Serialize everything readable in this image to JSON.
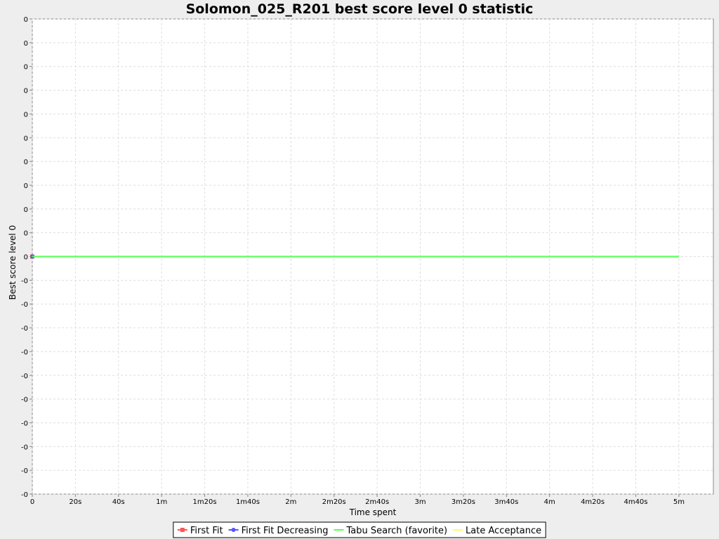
{
  "chart_data": {
    "type": "line",
    "title": "Solomon_025_R201 best score level 0 statistic",
    "xlabel": "Time spent",
    "ylabel": "Best score level 0",
    "x_unit": "seconds",
    "xlim": [
      0,
      316
    ],
    "x_ticks": [
      {
        "value": 0,
        "label": "0"
      },
      {
        "value": 20,
        "label": "20s"
      },
      {
        "value": 40,
        "label": "40s"
      },
      {
        "value": 60,
        "label": "1m"
      },
      {
        "value": 80,
        "label": "1m20s"
      },
      {
        "value": 100,
        "label": "1m40s"
      },
      {
        "value": 120,
        "label": "2m"
      },
      {
        "value": 140,
        "label": "2m20s"
      },
      {
        "value": 160,
        "label": "2m40s"
      },
      {
        "value": 180,
        "label": "3m"
      },
      {
        "value": 200,
        "label": "3m20s"
      },
      {
        "value": 220,
        "label": "3m40s"
      },
      {
        "value": 240,
        "label": "4m"
      },
      {
        "value": 260,
        "label": "4m20s"
      },
      {
        "value": 280,
        "label": "4m40s"
      },
      {
        "value": 300,
        "label": "5m"
      }
    ],
    "ylim": [
      -0.001,
      0.001
    ],
    "y_ticks": [
      {
        "value": 0.001,
        "label": "0"
      },
      {
        "value": 0.0009,
        "label": "0"
      },
      {
        "value": 0.0008,
        "label": "0"
      },
      {
        "value": 0.0007,
        "label": "0"
      },
      {
        "value": 0.0006,
        "label": "0"
      },
      {
        "value": 0.0005,
        "label": "0"
      },
      {
        "value": 0.0004,
        "label": "0"
      },
      {
        "value": 0.0003,
        "label": "0"
      },
      {
        "value": 0.0002,
        "label": "0"
      },
      {
        "value": 0.0001,
        "label": "0"
      },
      {
        "value": 0.0,
        "label": "0"
      },
      {
        "value": -0.0001,
        "label": "-0"
      },
      {
        "value": -0.0002,
        "label": "-0"
      },
      {
        "value": -0.0003,
        "label": "-0"
      },
      {
        "value": -0.0004,
        "label": "-0"
      },
      {
        "value": -0.0005,
        "label": "-0"
      },
      {
        "value": -0.0006,
        "label": "-0"
      },
      {
        "value": -0.0007,
        "label": "-0"
      },
      {
        "value": -0.0008,
        "label": "-0"
      },
      {
        "value": -0.0009,
        "label": "-0"
      },
      {
        "value": -0.001,
        "label": "-0"
      }
    ],
    "grid": true,
    "legend_position": "bottom",
    "series": [
      {
        "name": "First Fit",
        "color": "#ff5555",
        "marker": "square",
        "x": [
          0
        ],
        "y": [
          0
        ]
      },
      {
        "name": "First Fit Decreasing",
        "color": "#5555ff",
        "marker": "circle",
        "x": [
          0
        ],
        "y": [
          0
        ]
      },
      {
        "name": "Tabu Search (favorite)",
        "color": "#55ff55",
        "marker": "none",
        "x": [
          0,
          300
        ],
        "y": [
          0,
          0
        ]
      },
      {
        "name": "Late Acceptance",
        "color": "#ffff55",
        "marker": "none",
        "x": [
          0
        ],
        "y": [
          0
        ]
      }
    ]
  },
  "colors": {
    "page_background": "#eeeeee",
    "plot_background": "#ffffff",
    "gridline": "#dddddd"
  }
}
